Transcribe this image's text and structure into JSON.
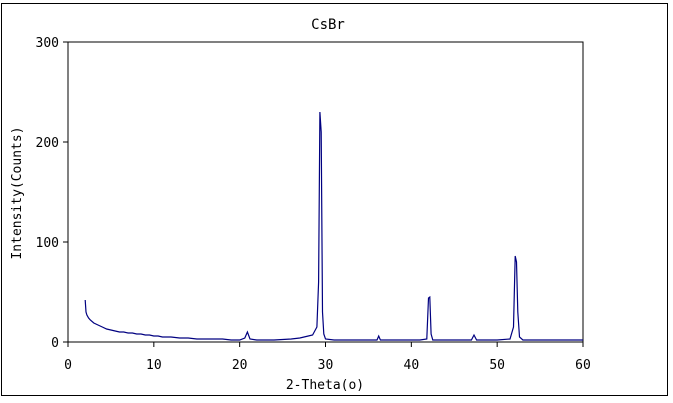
{
  "chart_data": {
    "type": "line",
    "title": "CsBr",
    "xlabel": "2-Theta(o)",
    "ylabel": "Intensity(Counts)",
    "xlim": [
      0,
      60
    ],
    "ylim": [
      0,
      300
    ],
    "xticks": [
      0,
      10,
      20,
      30,
      40,
      50,
      60
    ],
    "yticks": [
      0,
      100,
      200,
      300
    ],
    "grid": false,
    "legend": "none",
    "series": [
      {
        "color": "#000080",
        "x": [
          2.0,
          2.1,
          2.2,
          2.4,
          2.6,
          3.0,
          3.5,
          4.0,
          4.5,
          5.0,
          5.5,
          6.0,
          6.5,
          7.0,
          7.5,
          8.0,
          8.5,
          9.0,
          9.5,
          10.0,
          10.5,
          11.0,
          12.0,
          13.0,
          14.0,
          15.0,
          16.0,
          17.0,
          18.0,
          19.0,
          20.0,
          20.6,
          20.9,
          21.2,
          22.0,
          24.0,
          26.0,
          27.0,
          28.0,
          28.5,
          29.0,
          29.2,
          29.35,
          29.5,
          29.65,
          29.8,
          30.0,
          31.0,
          33.0,
          35.0,
          36.0,
          36.2,
          36.4,
          37.0,
          39.0,
          41.0,
          41.8,
          42.0,
          42.15,
          42.3,
          42.5,
          44.0,
          46.0,
          47.0,
          47.3,
          47.6,
          48.0,
          50.0,
          51.5,
          51.9,
          52.1,
          52.25,
          52.4,
          52.6,
          53.0,
          55.0,
          57.0,
          59.0,
          60.0
        ],
        "y": [
          42,
          30,
          27,
          24,
          22,
          19,
          17,
          15,
          13,
          12,
          11,
          10,
          10,
          9,
          9,
          8,
          8,
          7,
          7,
          6,
          6,
          5,
          5,
          4,
          4,
          3,
          3,
          3,
          3,
          2,
          2,
          4,
          10,
          3,
          2,
          2,
          3,
          4,
          6,
          7,
          15,
          60,
          230,
          210,
          30,
          8,
          3,
          2,
          2,
          2,
          2,
          6,
          2,
          2,
          2,
          2,
          3,
          44,
          45,
          8,
          2,
          2,
          2,
          2,
          7,
          2,
          2,
          2,
          3,
          15,
          86,
          80,
          30,
          5,
          2,
          2,
          2,
          2,
          2
        ]
      }
    ]
  }
}
